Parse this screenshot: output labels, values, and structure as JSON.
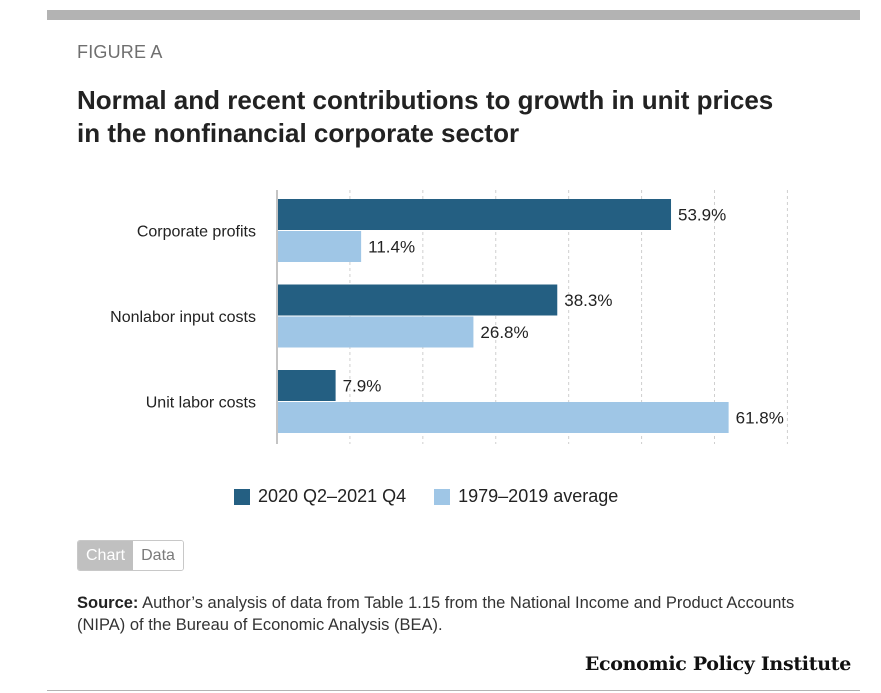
{
  "figure_label": "FIGURE A",
  "title": "Normal and recent contributions to growth in unit prices in the nonfinancial corporate sector",
  "colors": {
    "series1": "#245f82",
    "series2": "#9fc6e6",
    "grid": "#cfcfcf",
    "axis": "#b0b0b0"
  },
  "chart_data": {
    "type": "bar",
    "orientation": "horizontal",
    "categories": [
      "Corporate profits",
      "Nonlabor input costs",
      "Unit labor costs"
    ],
    "series": [
      {
        "name": "2020 Q2–2021 Q4",
        "values": [
          53.9,
          38.3,
          7.9
        ],
        "labels": [
          "53.9%",
          "38.3%",
          "7.9%"
        ]
      },
      {
        "name": "1979–2019 average",
        "values": [
          11.4,
          26.8,
          61.8
        ],
        "labels": [
          "11.4%",
          "26.8%",
          "61.8%"
        ]
      }
    ],
    "xlim": [
      0,
      72
    ],
    "grid": true,
    "legend": "bottom"
  },
  "toggle": {
    "chart_label": "Chart",
    "data_label": "Data"
  },
  "source": {
    "label": "Source:",
    "text": " Author’s analysis of data from Table 1.15 from the National Income and Product Accounts (NIPA) of the Bureau of Economic Analysis (BEA)."
  },
  "brand": "Economic Policy Institute"
}
